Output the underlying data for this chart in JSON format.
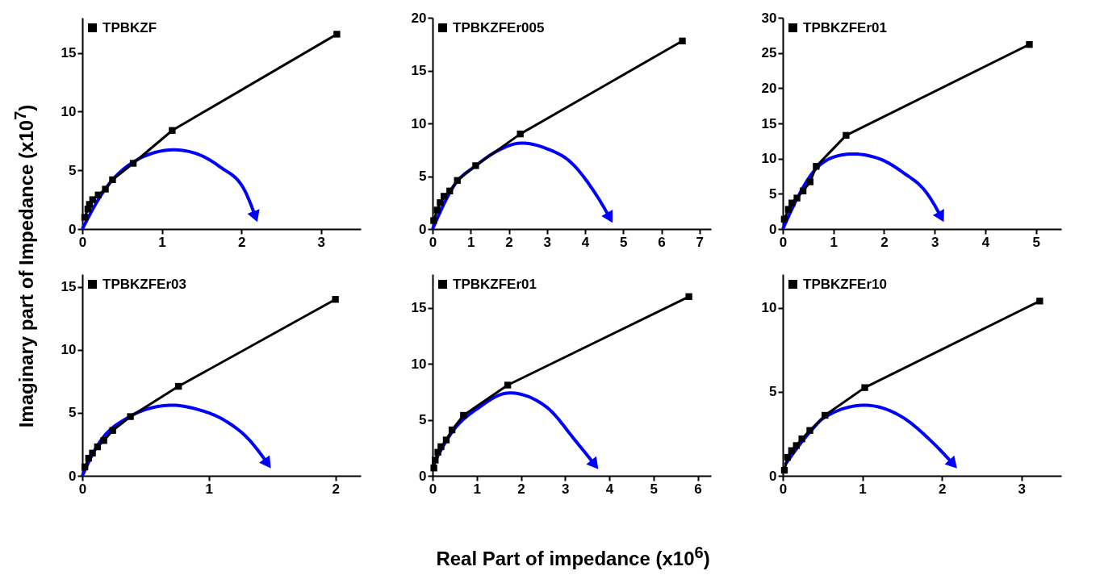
{
  "chart_data": [
    {
      "type": "line",
      "ylabel": "Imaginary part of Impedance (x10$^{7}$)",
      "xlim": [
        0,
        3.5
      ],
      "xticks": [
        0,
        1,
        2,
        3
      ],
      "ylim": [
        0,
        18
      ],
      "yticks": [
        0,
        5,
        10,
        15
      ],
      "legend": "top left",
      "marker": "square",
      "series": [
        {
          "name": "TPBKZF",
          "color": "#000000",
          "x": [
            0.03,
            0.07,
            0.09,
            0.13,
            0.2,
            0.29,
            0.38,
            0.64,
            1.13,
            3.2
          ],
          "values": [
            1.0,
            1.7,
            2.1,
            2.5,
            2.9,
            3.4,
            4.2,
            5.6,
            8.4,
            16.6
          ]
        }
      ]
    },
    {
      "type": "line",
      "xlim": [
        0,
        7.3
      ],
      "xticks": [
        0,
        1,
        2,
        3,
        4,
        5,
        6,
        7
      ],
      "ylim": [
        0,
        20
      ],
      "yticks": [
        0,
        5,
        10,
        15,
        20
      ],
      "legend": "top left",
      "marker": "square",
      "series": [
        {
          "name": "TPBKZFEr005",
          "color": "#000000",
          "x": [
            0.03,
            0.12,
            0.2,
            0.3,
            0.45,
            0.65,
            1.13,
            2.3,
            6.55
          ],
          "values": [
            0.8,
            1.8,
            2.5,
            3.1,
            3.6,
            4.6,
            6.0,
            9.0,
            17.8
          ]
        }
      ]
    },
    {
      "type": "line",
      "xlim": [
        0,
        5.5
      ],
      "xticks": [
        0,
        1,
        2,
        3,
        4,
        5
      ],
      "ylim": [
        0,
        30
      ],
      "yticks": [
        0,
        5,
        10,
        15,
        20,
        25,
        30
      ],
      "legend": "top left",
      "marker": "square",
      "series": [
        {
          "name": "TPBKZFEr01",
          "color": "#000000",
          "x": [
            0.03,
            0.11,
            0.18,
            0.28,
            0.4,
            0.54,
            0.66,
            1.25,
            4.87
          ],
          "values": [
            1.4,
            2.8,
            3.7,
            4.4,
            5.4,
            6.7,
            8.9,
            13.3,
            26.2
          ]
        }
      ]
    },
    {
      "type": "line",
      "xlim": [
        0,
        2.2
      ],
      "xticks": [
        0,
        1,
        2
      ],
      "ylim": [
        0,
        16
      ],
      "yticks": [
        0,
        5,
        10,
        15
      ],
      "legend": "top left",
      "marker": "square",
      "series": [
        {
          "name": "TPBKZFEr03",
          "color": "#000000",
          "x": [
            0.02,
            0.05,
            0.08,
            0.12,
            0.17,
            0.24,
            0.38,
            0.76,
            2.0
          ],
          "values": [
            0.7,
            1.4,
            1.8,
            2.3,
            2.8,
            3.6,
            4.7,
            7.1,
            14.0
          ]
        }
      ]
    },
    {
      "type": "line",
      "xlabel": "Real Part of impedance (x10$^{6}$)",
      "xlim": [
        0,
        6.3
      ],
      "xticks": [
        0,
        1,
        2,
        3,
        4,
        5,
        6
      ],
      "ylim": [
        0,
        18
      ],
      "yticks": [
        0,
        5,
        10,
        15
      ],
      "legend": "top left",
      "marker": "square",
      "series": [
        {
          "name": "TPBKZFEr01",
          "color": "#000000",
          "x": [
            0.03,
            0.06,
            0.12,
            0.19,
            0.31,
            0.44,
            0.7,
            1.7,
            5.8
          ],
          "values": [
            0.7,
            1.4,
            2.1,
            2.6,
            3.2,
            4.1,
            5.4,
            8.1,
            16.0
          ]
        }
      ]
    },
    {
      "type": "line",
      "xlim": [
        0,
        3.5
      ],
      "xticks": [
        0,
        1,
        2,
        3
      ],
      "ylim": [
        0,
        12
      ],
      "yticks": [
        0,
        5,
        10
      ],
      "legend": "top left",
      "marker": "square",
      "series": [
        {
          "name": "TPBKZFEr10",
          "color": "#000000",
          "x": [
            0.02,
            0.06,
            0.11,
            0.17,
            0.24,
            0.34,
            0.53,
            1.03,
            3.23
          ],
          "values": [
            0.33,
            1.1,
            1.5,
            1.8,
            2.2,
            2.7,
            3.6,
            5.25,
            10.4
          ]
        }
      ]
    }
  ]
}
